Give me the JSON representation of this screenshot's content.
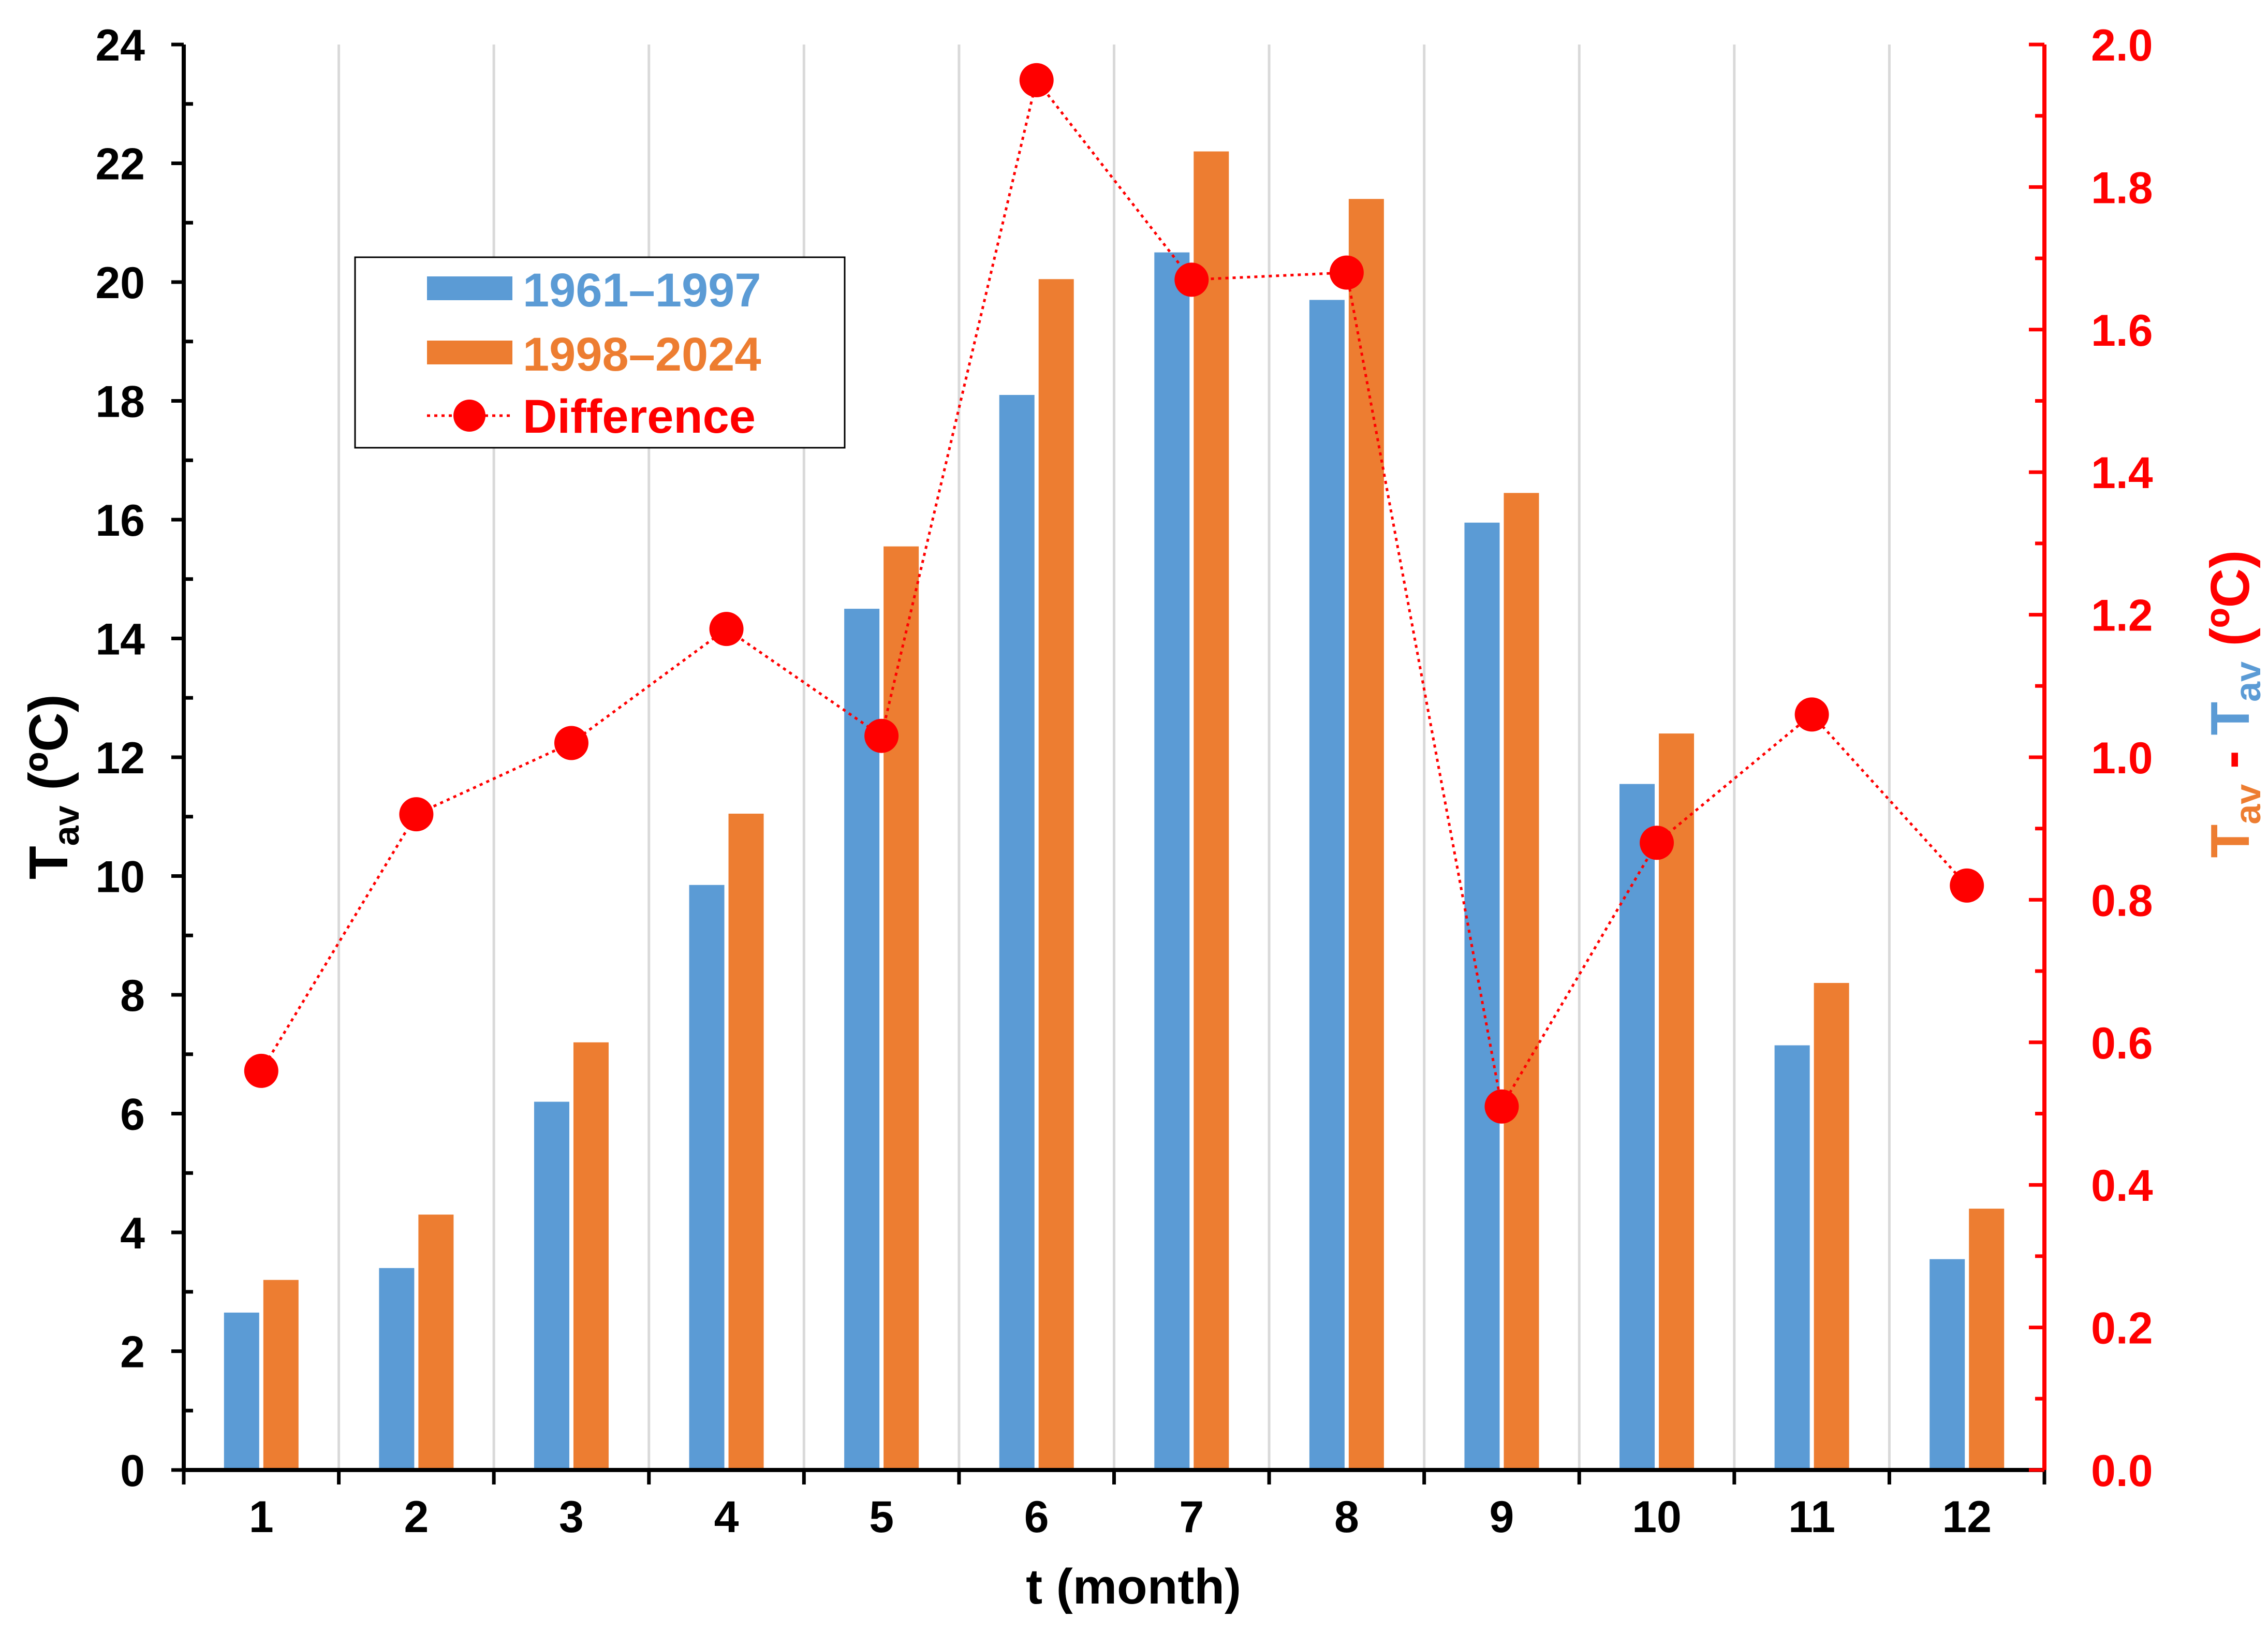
{
  "chart_data": {
    "type": "bar",
    "xlabel": "t (month)",
    "categories": [
      "1",
      "2",
      "3",
      "4",
      "5",
      "6",
      "7",
      "8",
      "9",
      "10",
      "11",
      "12"
    ],
    "ylabel": {
      "main": "T",
      "sub": "av",
      "unit": " (ºC)"
    },
    "ylim": [
      0,
      24
    ],
    "yticks": [
      "0",
      "2",
      "4",
      "6",
      "8",
      "10",
      "12",
      "14",
      "16",
      "18",
      "20",
      "22",
      "24"
    ],
    "y2label": {
      "orange_main": "T",
      "orange_sub": "av",
      "sep": " - ",
      "blue_main": "T",
      "blue_sub": "av",
      "unit": " (ºC)"
    },
    "y2lim": [
      0,
      2.0
    ],
    "y2ticks": [
      "0.0",
      "0.2",
      "0.4",
      "0.6",
      "0.8",
      "1.0",
      "1.2",
      "1.4",
      "1.6",
      "1.8",
      "2.0"
    ],
    "grid": "vertical",
    "legend_position": "top-left",
    "series": [
      {
        "name": "1961–1997",
        "kind": "bar",
        "axis": "left",
        "color": "#5b9bd5",
        "values": [
          2.65,
          3.4,
          6.2,
          9.85,
          14.5,
          18.1,
          20.5,
          19.7,
          15.95,
          11.55,
          7.15,
          3.55
        ]
      },
      {
        "name": "1998–2024",
        "kind": "bar",
        "axis": "left",
        "color": "#ed7d31",
        "values": [
          3.2,
          4.3,
          7.2,
          11.05,
          15.55,
          20.05,
          22.2,
          21.4,
          16.45,
          12.4,
          8.2,
          4.4
        ]
      },
      {
        "name": "Difference",
        "kind": "line",
        "axis": "right",
        "color": "#ff0000",
        "line_style": "dotted",
        "values": [
          0.56,
          0.92,
          1.02,
          1.18,
          1.03,
          1.95,
          1.67,
          1.68,
          0.51,
          0.88,
          1.06,
          0.82
        ]
      }
    ]
  },
  "colors": {
    "axis": "#000000",
    "right_axis": "#ff0000",
    "grid": "#d9d9d9"
  }
}
